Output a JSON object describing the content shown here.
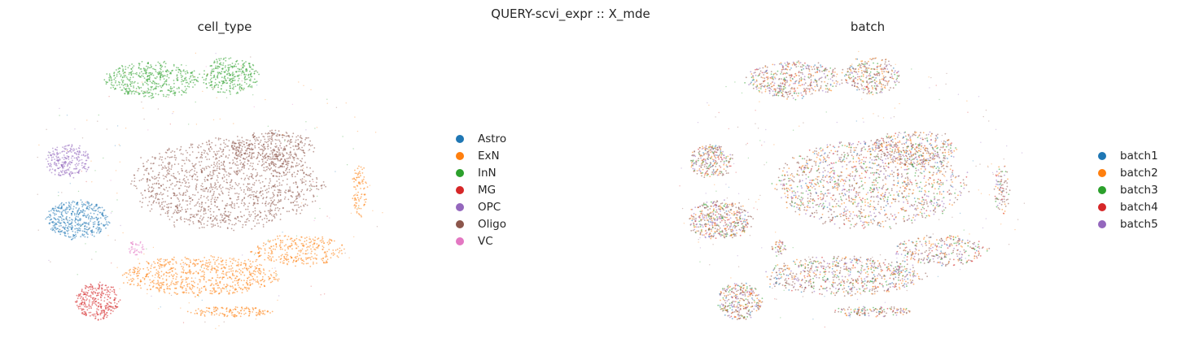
{
  "figure": {
    "suptitle": "QUERY-scvi_expr :: X_mde"
  },
  "chart_data": [
    {
      "type": "scatter",
      "title": "cell_type",
      "xlabel": "",
      "ylabel": "",
      "grid": false,
      "axes_visible": false,
      "legend_placement": "right",
      "series": [
        {
          "name": "Astro",
          "color": "#1f77b4"
        },
        {
          "name": "ExN",
          "color": "#ff7f0e"
        },
        {
          "name": "InN",
          "color": "#2ca02c"
        },
        {
          "name": "MG",
          "color": "#d62728"
        },
        {
          "name": "OPC",
          "color": "#9467bd"
        },
        {
          "name": "Oligo",
          "color": "#8c564b"
        },
        {
          "name": "VC",
          "color": "#e377c2"
        }
      ],
      "clusters": [
        {
          "series": "Oligo",
          "color": "#8c564b",
          "x": 0.0,
          "y": 0.0,
          "rx": 0.72,
          "ry": 0.34,
          "n": 1400
        },
        {
          "series": "Oligo",
          "color": "#8c564b",
          "x": 0.35,
          "y": 0.28,
          "rx": 0.32,
          "ry": 0.14,
          "n": 350
        },
        {
          "series": "ExN",
          "color": "#ff7f0e",
          "x": -0.2,
          "y": -0.72,
          "rx": 0.6,
          "ry": 0.15,
          "n": 700
        },
        {
          "series": "ExN",
          "color": "#ff7f0e",
          "x": 0.55,
          "y": -0.52,
          "rx": 0.35,
          "ry": 0.12,
          "n": 300
        },
        {
          "series": "ExN",
          "color": "#ff7f0e",
          "x": 0.02,
          "y": -1.0,
          "rx": 0.32,
          "ry": 0.04,
          "n": 140
        },
        {
          "series": "ExN",
          "color": "#ff7f0e",
          "x": 1.02,
          "y": -0.05,
          "rx": 0.06,
          "ry": 0.2,
          "n": 90
        },
        {
          "series": "InN",
          "color": "#2ca02c",
          "x": -0.58,
          "y": 0.82,
          "rx": 0.36,
          "ry": 0.14,
          "n": 450
        },
        {
          "series": "InN",
          "color": "#2ca02c",
          "x": 0.02,
          "y": 0.85,
          "rx": 0.22,
          "ry": 0.14,
          "n": 300
        },
        {
          "series": "Astro",
          "color": "#1f77b4",
          "x": -1.15,
          "y": -0.28,
          "rx": 0.24,
          "ry": 0.15,
          "n": 450
        },
        {
          "series": "OPC",
          "color": "#9467bd",
          "x": -1.22,
          "y": 0.18,
          "rx": 0.17,
          "ry": 0.13,
          "n": 260
        },
        {
          "series": "MG",
          "color": "#d62728",
          "x": -1.0,
          "y": -0.92,
          "rx": 0.17,
          "ry": 0.14,
          "n": 300
        },
        {
          "series": "VC",
          "color": "#e377c2",
          "x": -0.7,
          "y": -0.5,
          "rx": 0.06,
          "ry": 0.06,
          "n": 40
        }
      ],
      "xlim": [
        -1.5,
        1.2
      ],
      "ylim": [
        -1.15,
        1.05
      ]
    },
    {
      "type": "scatter",
      "title": "batch",
      "xlabel": "",
      "ylabel": "",
      "grid": false,
      "axes_visible": false,
      "legend_placement": "right",
      "series": [
        {
          "name": "batch1",
          "color": "#1f77b4"
        },
        {
          "name": "batch2",
          "color": "#ff7f0e"
        },
        {
          "name": "batch3",
          "color": "#2ca02c"
        },
        {
          "name": "batch4",
          "color": "#d62728"
        },
        {
          "name": "batch5",
          "color": "#9467bd"
        }
      ],
      "clusters": [
        {
          "x": 0.0,
          "y": 0.0,
          "rx": 0.72,
          "ry": 0.34,
          "n": 1400
        },
        {
          "x": 0.35,
          "y": 0.28,
          "rx": 0.32,
          "ry": 0.14,
          "n": 350
        },
        {
          "x": -0.2,
          "y": -0.72,
          "rx": 0.6,
          "ry": 0.15,
          "n": 700
        },
        {
          "x": 0.55,
          "y": -0.52,
          "rx": 0.35,
          "ry": 0.12,
          "n": 300
        },
        {
          "x": 0.02,
          "y": -1.0,
          "rx": 0.32,
          "ry": 0.04,
          "n": 140
        },
        {
          "x": 1.02,
          "y": -0.05,
          "rx": 0.06,
          "ry": 0.2,
          "n": 90
        },
        {
          "x": -0.58,
          "y": 0.82,
          "rx": 0.36,
          "ry": 0.14,
          "n": 450
        },
        {
          "x": 0.02,
          "y": 0.85,
          "rx": 0.22,
          "ry": 0.14,
          "n": 300
        },
        {
          "x": -1.15,
          "y": -0.28,
          "rx": 0.24,
          "ry": 0.15,
          "n": 450
        },
        {
          "x": -1.22,
          "y": 0.18,
          "rx": 0.17,
          "ry": 0.13,
          "n": 260
        },
        {
          "x": -1.0,
          "y": -0.92,
          "rx": 0.17,
          "ry": 0.14,
          "n": 300
        },
        {
          "x": -0.7,
          "y": -0.5,
          "rx": 0.06,
          "ry": 0.06,
          "n": 40
        }
      ],
      "mix": [
        0.08,
        0.34,
        0.18,
        0.12,
        0.28
      ],
      "base_color": "#8c564b",
      "xlim": [
        -1.5,
        1.2
      ],
      "ylim": [
        -1.15,
        1.05
      ]
    }
  ]
}
